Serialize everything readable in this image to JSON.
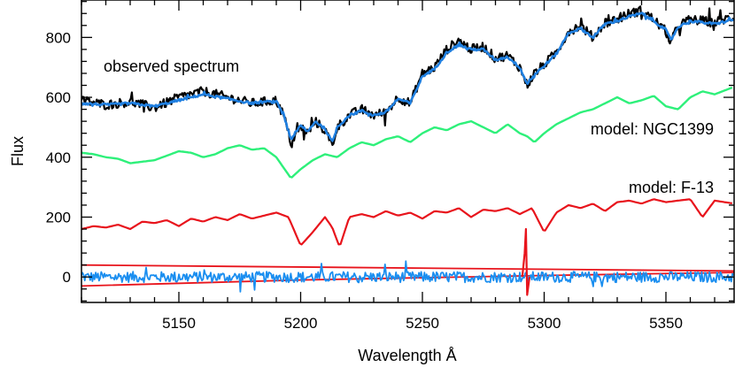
{
  "chart_data": {
    "type": "line",
    "xlabel": "Wavelength Å",
    "ylabel": "Flux",
    "xlim": [
      5110,
      5378
    ],
    "ylim": [
      -85,
      925
    ],
    "xticks": [
      5150,
      5200,
      5250,
      5300,
      5350
    ],
    "yticks": [
      0,
      200,
      400,
      600,
      800
    ],
    "grid": false,
    "annotations": [
      {
        "text": "observed spectrum",
        "x": 5121,
        "y": 700
      },
      {
        "text": "model: NGC1399",
        "x": 5365,
        "y": 500
      },
      {
        "text": "model: F-13",
        "x": 5365,
        "y": 298
      }
    ],
    "colors": {
      "observed": "#000000",
      "fit": "#1f7fe0",
      "ngc1399": "#2ef07a",
      "f13": "#e8141c",
      "residual": "#1a8ef0",
      "error_band": "#e8141c"
    },
    "series": [
      {
        "key": "observed",
        "noise": 16,
        "x": [
          5110,
          5120,
          5130,
          5140,
          5150,
          5160,
          5170,
          5180,
          5185,
          5190,
          5193,
          5196,
          5200,
          5203,
          5206,
          5210,
          5213,
          5215,
          5220,
          5225,
          5230,
          5235,
          5240,
          5245,
          5250,
          5255,
          5260,
          5265,
          5270,
          5275,
          5280,
          5285,
          5290,
          5293,
          5296,
          5300,
          5305,
          5310,
          5315,
          5320,
          5325,
          5330,
          5335,
          5340,
          5345,
          5350,
          5352,
          5355,
          5360,
          5365,
          5370,
          5378
        ],
        "y": [
          590,
          575,
          585,
          565,
          600,
          620,
          600,
          580,
          585,
          590,
          540,
          450,
          500,
          480,
          520,
          490,
          440,
          500,
          540,
          560,
          540,
          550,
          600,
          580,
          680,
          700,
          760,
          790,
          760,
          770,
          730,
          740,
          700,
          640,
          680,
          710,
          750,
          820,
          840,
          800,
          850,
          860,
          880,
          890,
          860,
          820,
          780,
          840,
          860,
          855,
          850,
          870
        ]
      },
      {
        "key": "fit",
        "noise": 4,
        "x": [
          5110,
          5120,
          5130,
          5140,
          5150,
          5160,
          5170,
          5180,
          5185,
          5190,
          5193,
          5196,
          5200,
          5203,
          5206,
          5210,
          5213,
          5215,
          5220,
          5225,
          5230,
          5235,
          5240,
          5245,
          5250,
          5255,
          5260,
          5265,
          5270,
          5275,
          5280,
          5285,
          5290,
          5293,
          5296,
          5300,
          5305,
          5310,
          5315,
          5320,
          5325,
          5330,
          5335,
          5340,
          5345,
          5350,
          5352,
          5355,
          5360,
          5365,
          5370,
          5378
        ],
        "y": [
          580,
          575,
          580,
          570,
          590,
          610,
          595,
          580,
          585,
          585,
          545,
          460,
          505,
          485,
          520,
          495,
          450,
          500,
          540,
          555,
          540,
          550,
          595,
          580,
          670,
          695,
          750,
          775,
          760,
          760,
          725,
          735,
          700,
          645,
          675,
          705,
          745,
          815,
          830,
          800,
          845,
          855,
          870,
          880,
          855,
          825,
          790,
          835,
          855,
          850,
          845,
          860
        ]
      },
      {
        "key": "ngc1399",
        "noise": 0,
        "x": [
          5110,
          5115,
          5120,
          5125,
          5130,
          5135,
          5140,
          5145,
          5150,
          5155,
          5160,
          5165,
          5170,
          5175,
          5180,
          5185,
          5190,
          5193,
          5196,
          5200,
          5205,
          5210,
          5215,
          5220,
          5225,
          5230,
          5235,
          5240,
          5245,
          5250,
          5255,
          5260,
          5265,
          5270,
          5275,
          5280,
          5285,
          5290,
          5293,
          5296,
          5300,
          5305,
          5310,
          5315,
          5320,
          5325,
          5330,
          5335,
          5340,
          5345,
          5350,
          5355,
          5360,
          5365,
          5370,
          5378
        ],
        "y": [
          415,
          410,
          400,
          395,
          380,
          385,
          390,
          405,
          420,
          415,
          400,
          410,
          430,
          440,
          425,
          430,
          400,
          365,
          330,
          360,
          390,
          410,
          400,
          430,
          450,
          440,
          460,
          470,
          450,
          480,
          500,
          490,
          510,
          520,
          500,
          480,
          510,
          480,
          470,
          450,
          480,
          510,
          530,
          550,
          560,
          580,
          600,
          580,
          590,
          605,
          570,
          560,
          600,
          620,
          610,
          635
        ]
      },
      {
        "key": "f13",
        "noise": 0,
        "x": [
          5110,
          5115,
          5120,
          5125,
          5130,
          5135,
          5140,
          5145,
          5150,
          5155,
          5160,
          5165,
          5170,
          5175,
          5180,
          5185,
          5190,
          5195,
          5200,
          5205,
          5210,
          5213,
          5216,
          5220,
          5225,
          5230,
          5235,
          5240,
          5245,
          5250,
          5255,
          5260,
          5265,
          5270,
          5275,
          5280,
          5285,
          5290,
          5295,
          5300,
          5305,
          5310,
          5315,
          5320,
          5325,
          5330,
          5335,
          5340,
          5345,
          5350,
          5355,
          5360,
          5365,
          5370,
          5378
        ],
        "y": [
          160,
          170,
          165,
          175,
          160,
          185,
          180,
          190,
          170,
          195,
          185,
          200,
          190,
          210,
          195,
          205,
          215,
          200,
          105,
          150,
          200,
          165,
          100,
          200,
          210,
          200,
          220,
          205,
          215,
          195,
          220,
          215,
          230,
          200,
          225,
          220,
          230,
          210,
          230,
          150,
          215,
          240,
          230,
          245,
          220,
          250,
          255,
          245,
          260,
          250,
          255,
          260,
          200,
          255,
          245
        ]
      },
      {
        "key": "residual",
        "noise": 18,
        "x": [
          5110,
          5130,
          5150,
          5170,
          5190,
          5210,
          5230,
          5250,
          5270,
          5290,
          5310,
          5330,
          5350,
          5378
        ],
        "y": [
          0,
          0,
          0,
          0,
          0,
          0,
          0,
          0,
          0,
          0,
          0,
          0,
          0,
          0
        ]
      },
      {
        "key": "error_upper",
        "noise": 0,
        "x": [
          5110,
          5378
        ],
        "y": [
          40,
          20
        ]
      },
      {
        "key": "error_lower",
        "noise": 0,
        "x": [
          5110,
          5200,
          5300,
          5378
        ],
        "y": [
          -30,
          -10,
          5,
          15
        ]
      },
      {
        "key": "residual_spike",
        "noise": 0,
        "x": [
          5291,
          5292,
          5292.5,
          5293,
          5294
        ],
        "y": [
          0,
          80,
          160,
          -60,
          0
        ]
      }
    ]
  }
}
